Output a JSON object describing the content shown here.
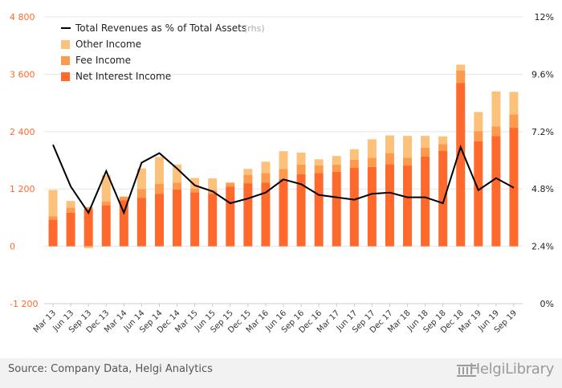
{
  "footer": {
    "source": "Source: Company Data, Helgi Analytics",
    "brand": "HelgiLibrary"
  },
  "colors": {
    "net_interest": "#ff6a2c",
    "fee": "#fc9a4e",
    "other": "#fcc27c",
    "line": "#000000",
    "left_axis_text": "#ff6a2c",
    "grid": "#e6e6e6"
  },
  "chart_data": {
    "type": "bar",
    "stacked": true,
    "categories": [
      "Mar 13",
      "Jun 13",
      "Sep 13",
      "Dec 13",
      "Mar 14",
      "Jun 14",
      "Sep 14",
      "Dec 14",
      "Mar 15",
      "Jun 15",
      "Sep 15",
      "Dec 15",
      "Mar 16",
      "Jun 16",
      "Sep 16",
      "Dec 16",
      "Mar 17",
      "Jun 17",
      "Sep 17",
      "Dec 17",
      "Mar 18",
      "Jun 18",
      "Sep 18",
      "Dec 18",
      "Mar 19",
      "Jun 19",
      "Sep 19"
    ],
    "x_ticks": [
      "Mar 13",
      "Jun 13",
      "Sep 13",
      "Dec 13",
      "Mar 14",
      "Jun 14",
      "Sep 14",
      "Dec 14",
      "Mar 15",
      "Jun 15",
      "Sep 15",
      "Dec 15",
      "Mar 16",
      "Jun 16",
      "Sep 16",
      "Dec 16",
      "Mar 17",
      "Jun 17",
      "Sep 17",
      "Dec 17",
      "Mar 18",
      "Jun 18",
      "Sep 18",
      "Dec 18",
      "Mar 19",
      "Jun 19",
      "Sep 19"
    ],
    "series": [
      {
        "name": "Net Interest Income",
        "axis": "left",
        "kind": "bar",
        "color": "#ff6a2c",
        "values": [
          560,
          700,
          780,
          860,
          960,
          1010,
          1100,
          1190,
          1130,
          1100,
          1250,
          1320,
          1330,
          1410,
          1510,
          1530,
          1560,
          1640,
          1660,
          1720,
          1690,
          1880,
          2000,
          3420,
          2200,
          2310,
          2480
        ]
      },
      {
        "name": "Fee Income",
        "axis": "left",
        "kind": "bar",
        "color": "#fc9a4e",
        "values": [
          70,
          110,
          40,
          80,
          80,
          190,
          210,
          140,
          80,
          80,
          70,
          180,
          200,
          210,
          200,
          160,
          150,
          170,
          190,
          230,
          160,
          180,
          140,
          260,
          210,
          200,
          280
        ]
      },
      {
        "name": "Other Income",
        "axis": "left",
        "kind": "bar",
        "color": "#fcc27c",
        "values": [
          550,
          140,
          -40,
          550,
          0,
          430,
          560,
          380,
          220,
          240,
          20,
          120,
          240,
          370,
          250,
          130,
          180,
          220,
          390,
          370,
          460,
          250,
          160,
          120,
          400,
          730,
          470
        ]
      },
      {
        "name": "Total Revenues as % of Total Assets",
        "legend_suffix": "(rhs)",
        "axis": "right",
        "kind": "line",
        "color": "#000000",
        "values": [
          6.65,
          4.9,
          3.8,
          5.55,
          3.8,
          5.9,
          6.3,
          5.65,
          4.95,
          4.7,
          4.2,
          4.4,
          4.65,
          5.2,
          5.0,
          4.55,
          4.45,
          4.35,
          4.6,
          4.65,
          4.45,
          4.45,
          4.2,
          6.55,
          4.75,
          5.25,
          4.85
        ]
      }
    ],
    "left_axis": {
      "ylim": [
        -1200,
        4800
      ],
      "ticks": [
        "4 800",
        "3 600",
        "2 400",
        "1 200",
        "0",
        "-1 200"
      ],
      "tick_values": [
        4800,
        3600,
        2400,
        1200,
        0,
        -1200
      ]
    },
    "right_axis": {
      "ylim": [
        0,
        12
      ],
      "ticks": [
        "12%",
        "9.6%",
        "7.2%",
        "4.8%",
        "2.4%",
        "0%"
      ],
      "tick_values": [
        12,
        9.6,
        7.2,
        4.8,
        2.4,
        0
      ]
    },
    "legend_position": "top-left",
    "grid": true
  }
}
